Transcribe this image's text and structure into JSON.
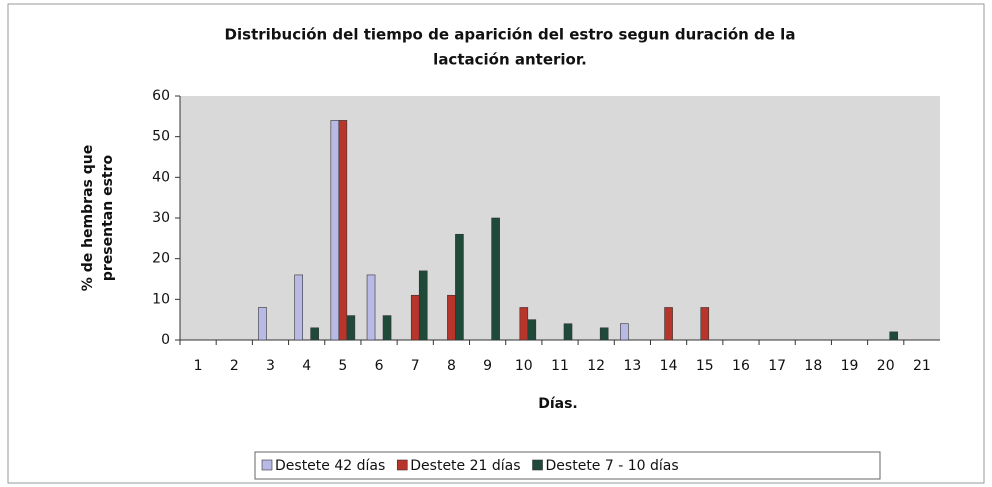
{
  "chart_data": {
    "type": "bar",
    "title": [
      "Distribución del tiempo de aparición del estro segun duración de la",
      "lactación anterior."
    ],
    "y_label": [
      "% de hembras que",
      "presentan estro"
    ],
    "x_label": "Días.",
    "categories": [
      "1",
      "2",
      "3",
      "4",
      "5",
      "6",
      "7",
      "8",
      "9",
      "10",
      "11",
      "12",
      "13",
      "14",
      "15",
      "16",
      "17",
      "18",
      "19",
      "20",
      "21"
    ],
    "series": [
      {
        "name": "Destete 42 días",
        "color": "#b9b9e6",
        "values": [
          0,
          0,
          8,
          16,
          54,
          16,
          0,
          0,
          0,
          0,
          0,
          0,
          4,
          0,
          0,
          0,
          0,
          0,
          0,
          0,
          0
        ]
      },
      {
        "name": "Destete 21 días",
        "color": "#b8352c",
        "values": [
          0,
          0,
          0,
          0,
          54,
          0,
          11,
          11,
          0,
          8,
          0,
          0,
          0,
          8,
          8,
          0,
          0,
          0,
          0,
          0,
          0
        ]
      },
      {
        "name": "Destete 7 - 10 días",
        "color": "#1f4a3a",
        "values": [
          0,
          0,
          0,
          3,
          6,
          6,
          17,
          26,
          30,
          5,
          4,
          3,
          0,
          0,
          0,
          0,
          0,
          0,
          0,
          2,
          0
        ]
      }
    ],
    "ylim": [
      0,
      60
    ],
    "yticks": [
      0,
      10,
      20,
      30,
      40,
      50,
      60
    ],
    "grid": false,
    "legend": "bottom"
  }
}
